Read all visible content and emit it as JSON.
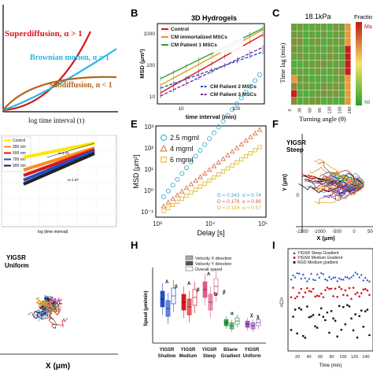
{
  "colors": {
    "red": "#d7191c",
    "cyan": "#29b6e8",
    "brown": "#b5651d",
    "yellow": "#ffe600",
    "green": "#2e9e3e",
    "blue": "#1f4fc9",
    "purple": "#7b2d8e",
    "heat_high": "#c01818",
    "heat_low": "#2ca02c"
  },
  "chart_data": [
    {
      "panel": "A",
      "type": "line",
      "xlabel": "log time interval (τ)",
      "series": [
        {
          "name": "Superdiffusion, α > 1",
          "color": "#d7191c"
        },
        {
          "name": "Brownian motion, α = 1",
          "color": "#29b6e8"
        },
        {
          "name": "Subdiffusion, α < 1",
          "color": "#b5651d"
        }
      ]
    },
    {
      "panel": "B",
      "type": "line",
      "log_x": true,
      "log_y": true,
      "title": "3D Hydrogels",
      "xlabel": "time interval (min)",
      "ylabel": "MSD (μm²)",
      "xticks": [
        "10",
        "100"
      ],
      "yticks": [
        "10",
        "100",
        "1000"
      ],
      "series": [
        {
          "name": "Control",
          "color": "#d7191c"
        },
        {
          "name": "CM immortalized MSCs",
          "color": "#d9a31a"
        },
        {
          "name": "CM Patient 1 MSCs",
          "color": "#2e9e3e"
        },
        {
          "name": "CM Patient 2 MSCs",
          "color": "#1f4fc9"
        },
        {
          "name": "CM Patient 3 MSCs",
          "color": "#7b2d8e"
        }
      ]
    },
    {
      "panel": "C",
      "type": "heatmap",
      "title": "18.1kPa",
      "xlabel": "Turning angle (θ)",
      "ylabel": "Time lag (min)",
      "xticks": [
        "0",
        "30",
        "60",
        "90",
        "120",
        "150",
        "180"
      ],
      "colorbar": {
        "label": "Fractio",
        "high": "Ma",
        "low": "Mi"
      }
    },
    {
      "panel": "D",
      "type": "line",
      "xlabel": "log (time interval)",
      "series": [
        {
          "name": "Control",
          "color": "#ffe600"
        },
        {
          "name": "300 nm",
          "color": "#ff8c1a"
        },
        {
          "name": "500 nm",
          "color": "#d7191c"
        },
        {
          "name": "700 nm",
          "color": "#1f4fc9"
        },
        {
          "name": "900 nm",
          "color": "#222222"
        }
      ],
      "annotations": [
        "α=1.01",
        "α=1.57"
      ]
    },
    {
      "panel": "E",
      "type": "scatter",
      "log_x": true,
      "log_y": true,
      "xlabel": "Delay [s]",
      "ylabel": "MSD [μm²]",
      "xlim": [
        1000,
        100000
      ],
      "ylim": [
        0.1,
        1000
      ],
      "xticks": [
        "10³",
        "10⁴",
        "10⁵"
      ],
      "yticks": [
        "10⁻¹",
        "10⁰",
        "10¹",
        "10²",
        "10³"
      ],
      "series": [
        {
          "name": "2.5 mgml",
          "color": "#29a9c9",
          "marker": "circle",
          "D": "D = 0.343",
          "alpha": "α = 0.74"
        },
        {
          "name": "4 mgml",
          "color": "#d9603a",
          "marker": "triangle",
          "D": "D = 0.179",
          "alpha": "α = 0.86"
        },
        {
          "name": "6 mgml",
          "color": "#e0b21a",
          "marker": "square",
          "D": "D = 0.134",
          "alpha": "α = 0.57"
        }
      ]
    },
    {
      "panel": "F",
      "type": "trajectories",
      "label1": "YIGSR",
      "label2": "Steep",
      "xlabel": "X (μm)",
      "ylabel": "Y (μm)",
      "xticks": [
        "-1500",
        "-1000",
        "-500",
        "0",
        "500"
      ],
      "yticks": [
        "0"
      ]
    },
    {
      "panel": "G",
      "type": "trajectories",
      "label1": "YIGSR",
      "label2": "Uniform",
      "xlabel": "X (μm)"
    },
    {
      "panel": "H",
      "type": "box",
      "ylabel": "Speed (μm/min)",
      "legend": [
        "Velocity X direction",
        "Velocity Y direction",
        "Overall speed"
      ],
      "categories": [
        [
          "YIGSR",
          "Shallow"
        ],
        [
          "YIGSR",
          "Medium"
        ],
        [
          "YIGSR",
          "Steep"
        ],
        [
          "Bilane",
          "Gradient"
        ],
        [
          "YIGSR",
          "Uniform"
        ]
      ],
      "group_letters": [
        "A",
        "β",
        "A",
        "β",
        "A",
        "B",
        "β",
        "α",
        "χ",
        "χ"
      ]
    },
    {
      "panel": "I",
      "type": "scatter",
      "xlabel": "Time (min)",
      "ylabel": "<Ci>",
      "xticks": [
        "20",
        "40",
        "60",
        "80",
        "100",
        "120",
        "140"
      ],
      "series": [
        {
          "name": "YIGSR Steep Gradient",
          "color": "#1f4fc9",
          "marker": "triangle"
        },
        {
          "name": "YIGSR Medium Gradient",
          "color": "#d7191c",
          "marker": "circle"
        },
        {
          "name": "RGD Medium gradient",
          "color": "#111111",
          "marker": "square"
        }
      ]
    }
  ]
}
